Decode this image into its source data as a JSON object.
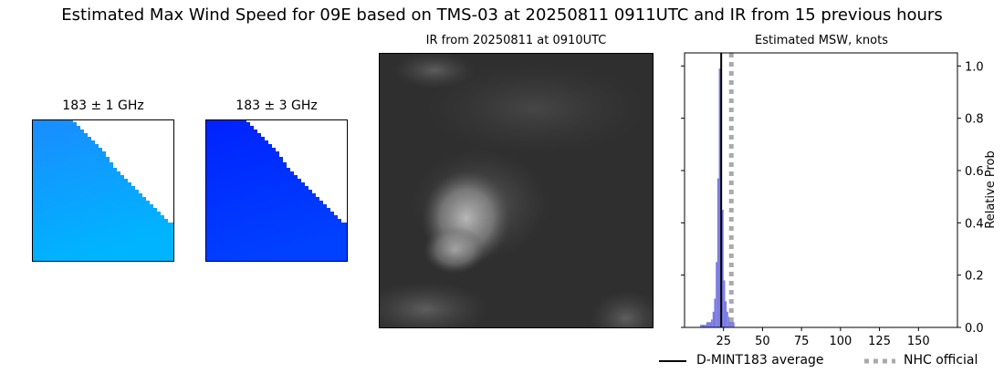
{
  "figure": {
    "title": "Estimated Max Wind Speed for 09E based on TMS-03 at 20250811 0911UTC and IR from 15 previous hours"
  },
  "panels": {
    "mw1": {
      "title": "183 ± 1 GHz",
      "fill_color": "#1a8cff",
      "fill_color_low": "#00b4ff",
      "background": "#ffffff"
    },
    "mw2": {
      "title": "183 ± 3 GHz",
      "fill_color": "#0022ff",
      "fill_color_low": "#0040ff",
      "background": "#ffffff"
    },
    "ir": {
      "title": "IR from 20250811 at 0910UTC",
      "background": "#2f2f2f",
      "cloud_color": "#9a9a9a"
    },
    "hist": {
      "title": "Estimated MSW, knots"
    }
  },
  "chart_data": {
    "type": "bar",
    "title": "Estimated MSW, knots",
    "xlabel": "",
    "ylabel": "Relative Prob",
    "xlim": [
      0,
      175
    ],
    "ylim": [
      0,
      1.05
    ],
    "xticks": [
      25,
      50,
      75,
      100,
      125,
      150
    ],
    "yticks": [
      0.0,
      0.2,
      0.4,
      0.6,
      0.8,
      1.0
    ],
    "ytick_labels": [
      "0.0",
      "0.2",
      "0.4",
      "0.6",
      "0.8",
      "1.0"
    ],
    "y_axis_side": "right",
    "grid": false,
    "bin_width": 1,
    "bins": [
      {
        "x": 10,
        "p": 0.01
      },
      {
        "x": 11,
        "p": 0.01
      },
      {
        "x": 12,
        "p": 0.01
      },
      {
        "x": 13,
        "p": 0.01
      },
      {
        "x": 14,
        "p": 0.02
      },
      {
        "x": 15,
        "p": 0.02
      },
      {
        "x": 16,
        "p": 0.02
      },
      {
        "x": 17,
        "p": 0.03
      },
      {
        "x": 18,
        "p": 0.06
      },
      {
        "x": 19,
        "p": 0.11
      },
      {
        "x": 20,
        "p": 0.25
      },
      {
        "x": 21,
        "p": 0.57
      },
      {
        "x": 22,
        "p": 0.99
      },
      {
        "x": 23,
        "p": 0.88
      },
      {
        "x": 24,
        "p": 0.45
      },
      {
        "x": 25,
        "p": 0.18
      },
      {
        "x": 26,
        "p": 0.1
      },
      {
        "x": 27,
        "p": 0.06
      },
      {
        "x": 28,
        "p": 0.04
      },
      {
        "x": 29,
        "p": 0.03
      },
      {
        "x": 30,
        "p": 0.03
      },
      {
        "x": 31,
        "p": 0.02
      }
    ],
    "bar_color": "#6a6ae0",
    "lines": [
      {
        "name": "D-MINT183 average",
        "x": 23.5,
        "color": "#000000",
        "style": "solid"
      },
      {
        "name": "NHC official",
        "x": 30,
        "color": "#aaaaaa",
        "style": "dotted"
      }
    ],
    "legend_position": "bottom-right"
  }
}
